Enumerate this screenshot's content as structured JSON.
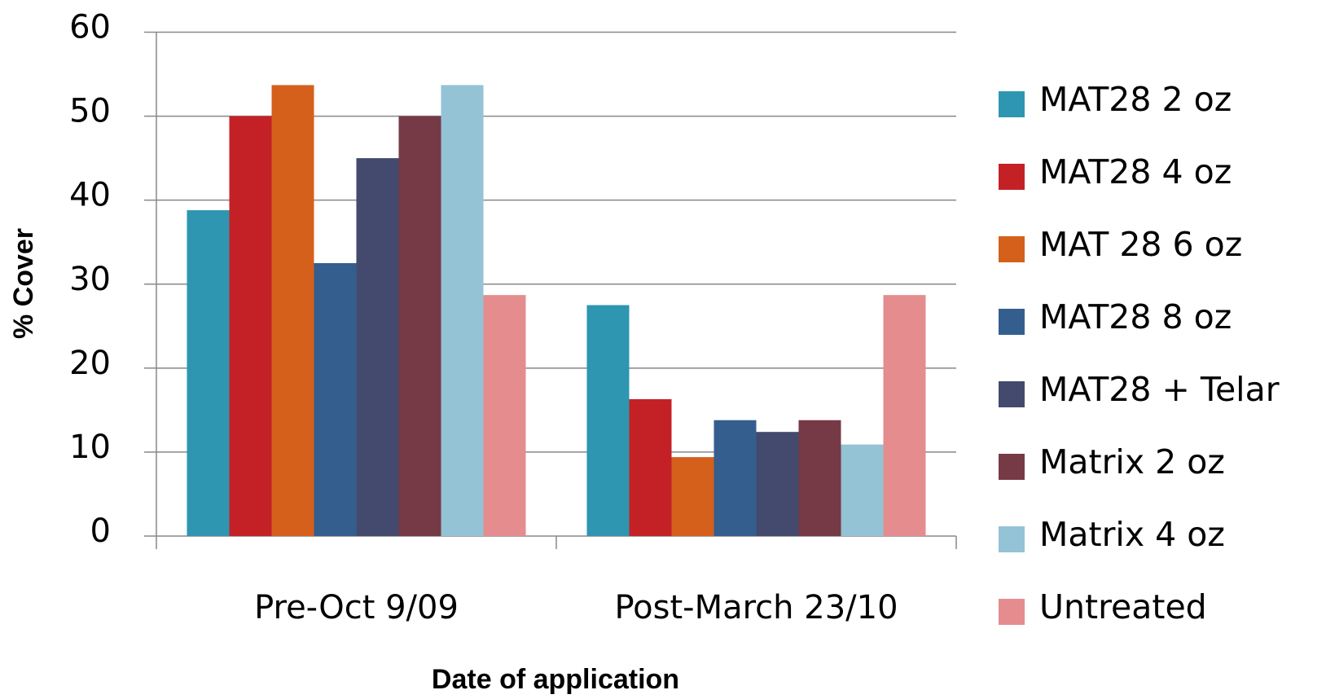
{
  "chart_data": {
    "type": "bar",
    "x_label": "Date of application",
    "y_label": "% Cover",
    "categories": [
      "Pre-Oct 9/09",
      "Post-March 23/10"
    ],
    "series": [
      {
        "name": "MAT28 2 oz",
        "color": "#2e96b0",
        "values": [
          38.8,
          27.5
        ]
      },
      {
        "name": "MAT28 4 oz",
        "color": "#c42127",
        "values": [
          50,
          16.3
        ]
      },
      {
        "name": "MAT 28 6 oz",
        "color": "#d4601c",
        "values": [
          53.7,
          9.4
        ]
      },
      {
        "name": "MAT28 8 oz",
        "color": "#345e8e",
        "values": [
          32.5,
          13.8
        ]
      },
      {
        "name": "MAT28 + Telar",
        "color": "#434a6e",
        "values": [
          45,
          12.4
        ]
      },
      {
        "name": "Matrix 2 oz",
        "color": "#763a46",
        "values": [
          50,
          13.8
        ]
      },
      {
        "name": "Matrix 4 oz",
        "color": "#93c3d5",
        "values": [
          53.7,
          10.9
        ]
      },
      {
        "name": "Untreated",
        "color": "#e58c8e",
        "values": [
          28.7,
          28.7
        ]
      }
    ],
    "ylim": [
      0,
      60
    ],
    "yticks": [
      0,
      10,
      20,
      30,
      40,
      50,
      60
    ],
    "grid": true,
    "legend": "right"
  }
}
